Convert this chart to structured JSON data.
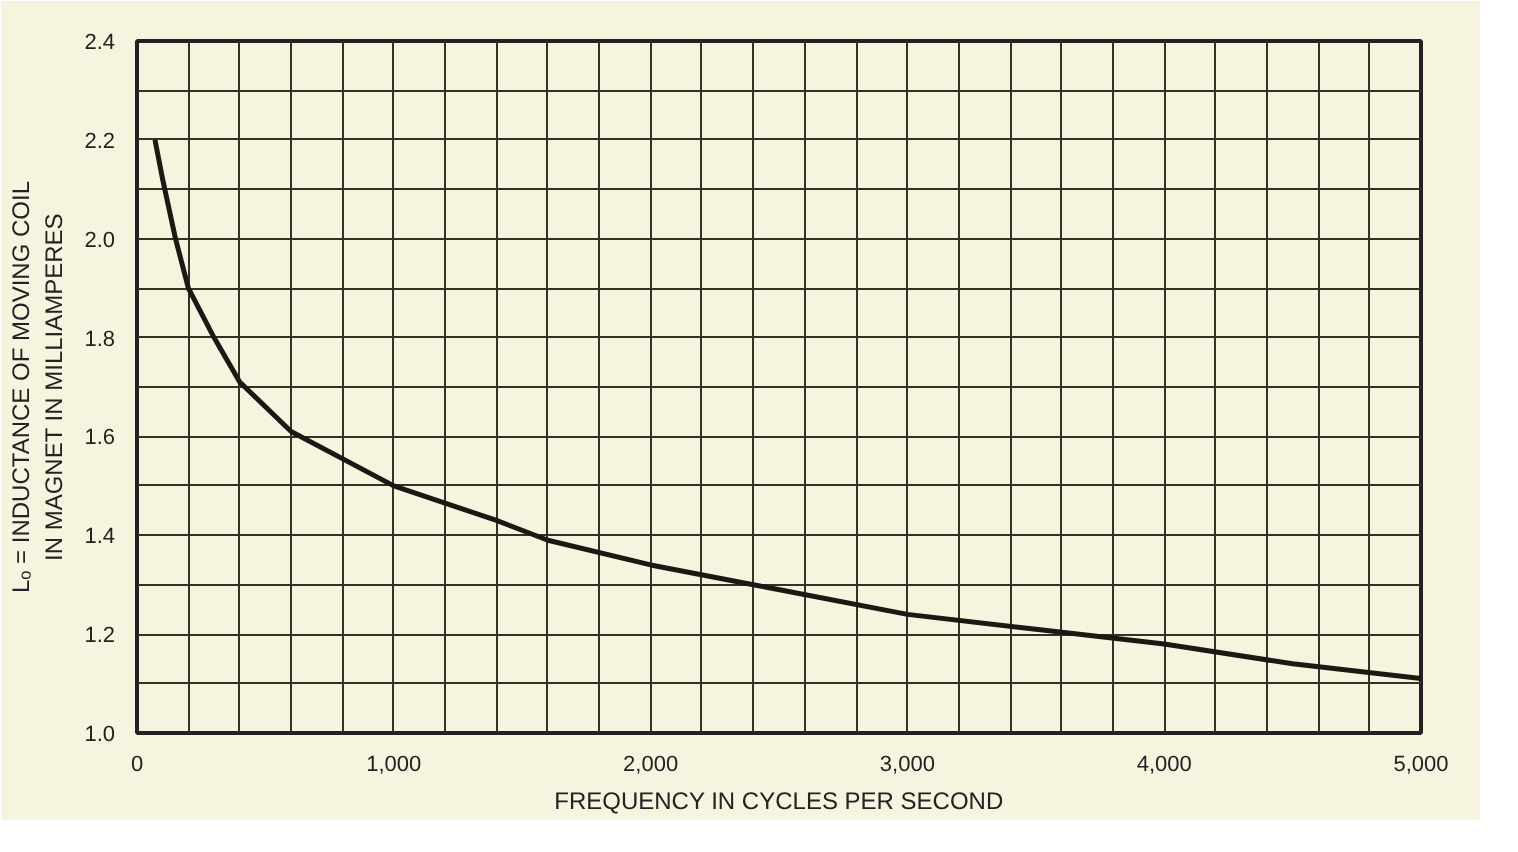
{
  "chart_data": {
    "type": "line",
    "xlabel": "FREQUENCY IN CYCLES PER SECOND",
    "ylabel": "Lₒ = INDUCTANCE OF MOVING COIL\nIN MAGNET IN MILLIAMPERES",
    "x": [
      70,
      100,
      150,
      200,
      300,
      400,
      600,
      1000,
      1400,
      1600,
      2000,
      2400,
      3000,
      3500,
      4000,
      4500,
      5000
    ],
    "series": [
      {
        "color": "#1a1a14",
        "values": [
          2.2,
          2.12,
          2.0,
          1.9,
          1.8,
          1.71,
          1.61,
          1.5,
          1.43,
          1.39,
          1.34,
          1.3,
          1.24,
          1.21,
          1.18,
          1.14,
          1.11
        ]
      }
    ],
    "xlim": [
      0,
      5000
    ],
    "ylim": [
      1.0,
      2.4
    ],
    "xticks": [
      0,
      {
        "value": 200,
        "label": null
      },
      {
        "value": 400,
        "label": null
      },
      {
        "value": 600,
        "label": null
      },
      {
        "value": 800,
        "label": null
      },
      {
        "value": 1000,
        "label": "1,000"
      },
      {
        "value": 1200,
        "label": null
      },
      {
        "value": 1400,
        "label": null
      },
      {
        "value": 1600,
        "label": null
      },
      {
        "value": 1800,
        "label": null
      },
      {
        "value": 2000,
        "label": "2,000"
      },
      {
        "value": 2200,
        "label": null
      },
      {
        "value": 2400,
        "label": null
      },
      {
        "value": 2600,
        "label": null
      },
      {
        "value": 2800,
        "label": null
      },
      {
        "value": 3000,
        "label": "3,000"
      },
      {
        "value": 3200,
        "label": null
      },
      {
        "value": 3400,
        "label": null
      },
      {
        "value": 3600,
        "label": null
      },
      {
        "value": 3800,
        "label": null
      },
      {
        "value": 4000,
        "label": "4,000"
      },
      {
        "value": 4200,
        "label": null
      },
      {
        "value": 4400,
        "label": null
      },
      {
        "value": 4600,
        "label": null
      },
      {
        "value": 4800,
        "label": null
      },
      {
        "value": 5000,
        "label": "5,000"
      }
    ],
    "yticks": [
      {
        "value": 1.0,
        "label": "1.0"
      },
      {
        "value": 1.1,
        "label": null
      },
      {
        "value": 1.2,
        "label": "1.2"
      },
      {
        "value": 1.3,
        "label": null
      },
      {
        "value": 1.4,
        "label": "1.4"
      },
      {
        "value": 1.5,
        "label": null
      },
      {
        "value": 1.6,
        "label": "1.6"
      },
      {
        "value": 1.7,
        "label": null
      },
      {
        "value": 1.8,
        "label": "1.8"
      },
      {
        "value": 1.9,
        "label": null
      },
      {
        "value": 2.0,
        "label": "2.0"
      },
      {
        "value": 2.1,
        "label": null
      },
      {
        "value": 2.2,
        "label": "2.2"
      },
      {
        "value": 2.3,
        "label": null
      },
      {
        "value": 2.4,
        "label": "2.4"
      }
    ],
    "grid": true,
    "line_style": "solid"
  }
}
